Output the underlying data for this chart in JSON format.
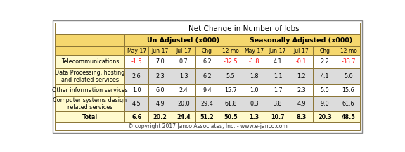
{
  "title": "Net Change in Number of Jobs",
  "subtitle": "© copyright 2017 Janco Associates, Inc. - www.e-janco.com",
  "col_groups": [
    "Un Adjusted (x000)",
    "Seasonally Adjusted (x000)"
  ],
  "col_headers": [
    "May-17",
    "Jun-17",
    "Jul-17",
    "Chg",
    "12 mo",
    "May-17",
    "Jun-17",
    "Jul-17",
    "Chg",
    "12 mo"
  ],
  "row_labels": [
    "Telecommunications",
    "Data Processing, hosting\nand related services",
    "Other information services",
    "Computer systems design\nrelated services",
    "Total"
  ],
  "data": [
    [
      "-1.5",
      "7.0",
      "0.7",
      "6.2",
      "-32.5",
      "-1.8",
      "4.1",
      "-0.1",
      "2.2",
      "-33.7"
    ],
    [
      "2.6",
      "2.3",
      "1.3",
      "6.2",
      "5.5",
      "1.8",
      "1.1",
      "1.2",
      "4.1",
      "5.0"
    ],
    [
      "1.0",
      "6.0",
      "2.4",
      "9.4",
      "15.7",
      "1.0",
      "1.7",
      "2.3",
      "5.0",
      "15.6"
    ],
    [
      "4.5",
      "4.9",
      "20.0",
      "29.4",
      "61.8",
      "0.3",
      "3.8",
      "4.9",
      "9.0",
      "61.6"
    ],
    [
      "6.6",
      "20.2",
      "24.4",
      "51.2",
      "50.5",
      "1.3",
      "10.7",
      "8.3",
      "20.3",
      "48.5"
    ]
  ],
  "negative_color": "#FF0000",
  "normal_color": "#000000",
  "header_bg": "#F5D76E",
  "row_bg_white": "#FFFFFF",
  "row_bg_gray": "#DCDCDC",
  "label_bg": "#FFFACD",
  "total_row_bg": "#FFFACD",
  "outer_bg": "#FFFFFF",
  "table_border_color": "#8B7536",
  "outer_border_color": "#888888",
  "title_color": "#000000",
  "footer_bg": "#FFFFFF"
}
